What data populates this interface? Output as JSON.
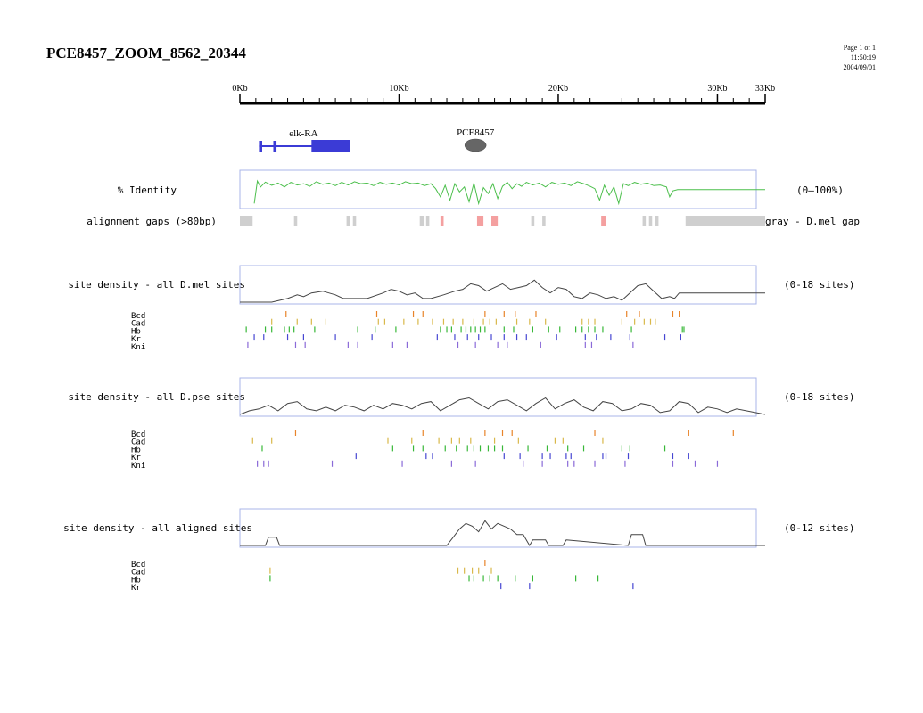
{
  "header": {
    "title": "PCE8457_ZOOM_8562_20344",
    "page": "Page 1 of 1",
    "time": "11:50:19",
    "date": "2004/09/01"
  },
  "chart_data": {
    "type": "genome-browser",
    "domain_kb": [
      0,
      33
    ],
    "ruler": {
      "labels": [
        "0Kb",
        "10Kb",
        "20Kb",
        "30Kb",
        "33Kb"
      ],
      "label_kb": [
        0,
        10,
        20,
        30,
        33
      ]
    },
    "features": [
      {
        "name": "elk-RA",
        "kind": "gene",
        "color": "#3b3bd6",
        "exons_kb": [
          [
            1.2,
            1.4
          ],
          [
            2.1,
            2.3
          ],
          [
            4.5,
            6.9
          ]
        ],
        "span_kb": [
          1.2,
          6.9
        ]
      },
      {
        "name": "PCE8457",
        "kind": "element",
        "color": "#666666",
        "center_kb": 14.8
      }
    ],
    "identity_track": {
      "label": "% Identity",
      "range_label": "(0–100%)",
      "color": "#4cbf4c",
      "ylim": [
        0,
        100
      ],
      "x_kb": [
        0.9,
        1.1,
        1.3,
        1.6,
        2.0,
        2.4,
        2.8,
        3.2,
        3.6,
        4.0,
        4.4,
        4.8,
        5.2,
        5.6,
        6.0,
        6.4,
        6.8,
        7.2,
        7.6,
        8.0,
        8.4,
        8.8,
        9.2,
        9.6,
        10.0,
        10.4,
        10.8,
        11.2,
        11.6,
        12.0,
        12.3,
        12.6,
        12.9,
        13.2,
        13.5,
        13.8,
        14.1,
        14.4,
        14.7,
        15.0,
        15.3,
        15.6,
        15.9,
        16.2,
        16.5,
        16.8,
        17.1,
        17.4,
        17.7,
        18.0,
        18.4,
        18.8,
        19.2,
        19.6,
        20.0,
        20.4,
        20.8,
        21.2,
        21.6,
        22.0,
        22.3,
        22.6,
        22.9,
        23.2,
        23.5,
        23.8,
        24.1,
        24.4,
        24.8,
        25.2,
        25.6,
        26.0,
        26.4,
        26.8,
        27.0,
        27.2,
        27.5,
        33.0
      ],
      "y": [
        10,
        78,
        60,
        75,
        65,
        72,
        60,
        74,
        66,
        70,
        62,
        76,
        68,
        72,
        64,
        74,
        66,
        76,
        70,
        72,
        64,
        74,
        68,
        72,
        66,
        76,
        70,
        72,
        64,
        70,
        55,
        30,
        65,
        20,
        70,
        45,
        60,
        15,
        72,
        10,
        58,
        40,
        70,
        25,
        62,
        74,
        55,
        70,
        62,
        74,
        66,
        72,
        60,
        74,
        68,
        72,
        64,
        76,
        70,
        62,
        55,
        20,
        65,
        35,
        60,
        10,
        70,
        64,
        74,
        68,
        72,
        64,
        66,
        60,
        30,
        48,
        52,
        52
      ]
    },
    "gap_track": {
      "label": "alignment gaps (>80bp)",
      "legend": "gray - D.mel gap",
      "segments_kb": [
        [
          0,
          0.8,
          "gray"
        ],
        [
          3.4,
          3.6,
          "gray"
        ],
        [
          6.7,
          6.9,
          "gray"
        ],
        [
          7.1,
          7.3,
          "gray"
        ],
        [
          11.3,
          11.6,
          "gray"
        ],
        [
          11.7,
          11.9,
          "gray"
        ],
        [
          12.6,
          12.8,
          "pink"
        ],
        [
          14.9,
          15.3,
          "pink"
        ],
        [
          15.8,
          16.2,
          "pink"
        ],
        [
          18.3,
          18.5,
          "gray"
        ],
        [
          19.0,
          19.2,
          "gray"
        ],
        [
          22.7,
          23.0,
          "pink"
        ],
        [
          25.3,
          25.5,
          "gray"
        ],
        [
          25.7,
          25.9,
          "gray"
        ],
        [
          26.1,
          26.3,
          "gray"
        ],
        [
          28.0,
          33.0,
          "gray"
        ]
      ]
    },
    "density_tracks": [
      {
        "label": "site density - all D.mel sites",
        "range_label": "(0-18 sites)",
        "ymax": 18,
        "x_kb": [
          0,
          2.0,
          3.0,
          3.6,
          4.0,
          4.5,
          5.2,
          6.0,
          6.5,
          7.0,
          8.0,
          9.0,
          9.5,
          10.0,
          10.5,
          11.0,
          11.5,
          12.0,
          12.8,
          13.5,
          14.0,
          14.5,
          15.0,
          15.5,
          16.0,
          16.5,
          17.0,
          17.5,
          18.0,
          18.5,
          19.0,
          19.5,
          20.0,
          20.5,
          21.0,
          21.5,
          22.0,
          22.5,
          23.0,
          23.5,
          24.0,
          24.5,
          25.0,
          25.5,
          26.0,
          26.5,
          27.0,
          27.3,
          27.6,
          33.0
        ],
        "y": [
          0,
          0,
          2,
          4,
          3,
          5,
          6,
          4,
          2,
          2,
          2,
          5,
          7,
          6,
          4,
          5,
          2,
          2,
          4,
          6,
          7,
          10,
          9,
          6,
          8,
          10,
          7,
          8,
          9,
          12,
          8,
          5,
          8,
          7,
          3,
          2,
          5,
          4,
          2,
          3,
          1,
          5,
          9,
          10,
          6,
          2,
          3,
          2,
          5,
          5
        ]
      },
      {
        "label": "site density - all D.pse sites",
        "range_label": "(0-18 sites)",
        "ymax": 18,
        "x_kb": [
          0,
          0.6,
          1.2,
          1.8,
          2.4,
          3.0,
          3.6,
          4.2,
          4.8,
          5.4,
          6.0,
          6.6,
          7.2,
          7.8,
          8.4,
          9.0,
          9.6,
          10.2,
          10.8,
          11.4,
          12.0,
          12.6,
          13.2,
          13.8,
          14.4,
          15.0,
          15.6,
          16.2,
          16.8,
          17.4,
          18.0,
          18.6,
          19.2,
          19.8,
          20.4,
          21.0,
          21.6,
          22.2,
          22.8,
          23.4,
          24.0,
          24.6,
          25.2,
          25.8,
          26.4,
          27.0,
          27.6,
          28.2,
          28.8,
          29.4,
          30.0,
          30.6,
          31.2,
          33.0
        ],
        "y": [
          0,
          2,
          3,
          5,
          2,
          6,
          7,
          3,
          2,
          4,
          2,
          5,
          4,
          2,
          5,
          3,
          6,
          5,
          3,
          6,
          7,
          2,
          5,
          8,
          9,
          6,
          3,
          7,
          8,
          5,
          2,
          6,
          9,
          3,
          6,
          8,
          4,
          2,
          7,
          6,
          2,
          3,
          6,
          5,
          1,
          2,
          7,
          6,
          1,
          4,
          3,
          1,
          3,
          0
        ]
      },
      {
        "label": "site density - all aligned sites",
        "range_label": "(0-12 sites)",
        "ymax": 12,
        "x_kb": [
          0,
          1.6,
          1.8,
          2.3,
          2.5,
          13.0,
          13.4,
          13.8,
          14.2,
          14.6,
          15.0,
          15.4,
          15.8,
          16.2,
          16.6,
          17.0,
          17.4,
          17.8,
          18.2,
          18.4,
          19.2,
          19.4,
          20.3,
          20.5,
          24.4,
          24.6,
          25.3,
          25.5,
          33.0
        ],
        "y": [
          0,
          0,
          3,
          3,
          0,
          0,
          3,
          6,
          8,
          7,
          5,
          9,
          6,
          8,
          7,
          6,
          4,
          4,
          0,
          2,
          2,
          0,
          0,
          2,
          0,
          4,
          4,
          0,
          0
        ]
      }
    ],
    "site_tracks": [
      {
        "rows": [
          {
            "name": "Bcd",
            "color": "#e8842a",
            "sites_kb": [
              2.9,
              8.6,
              10.9,
              11.5,
              15.4,
              16.6,
              17.3,
              18.6,
              24.3,
              25.1,
              27.2,
              27.6
            ]
          },
          {
            "name": "Cad",
            "color": "#d9b84a",
            "sites_kb": [
              2.0,
              3.6,
              4.5,
              5.4,
              8.7,
              9.1,
              10.3,
              11.2,
              12.1,
              12.8,
              13.4,
              14.0,
              14.7,
              15.3,
              15.7,
              16.1,
              17.4,
              18.2,
              19.2,
              21.5,
              21.9,
              22.3,
              24.0,
              24.8,
              25.4,
              25.8,
              26.1
            ]
          },
          {
            "name": "Hb",
            "color": "#38b838",
            "sites_kb": [
              0.4,
              1.6,
              2.0,
              2.8,
              3.1,
              3.4,
              4.7,
              7.4,
              8.5,
              9.8,
              12.6,
              13.0,
              13.3,
              13.9,
              14.2,
              14.5,
              14.8,
              15.1,
              15.4,
              16.6,
              17.2,
              18.4,
              19.4,
              20.1,
              21.1,
              21.5,
              21.9,
              22.3,
              22.8,
              24.6,
              27.8,
              27.9
            ]
          },
          {
            "name": "Kr",
            "color": "#4646d2",
            "sites_kb": [
              0.9,
              1.5,
              3.0,
              4.0,
              6.0,
              8.3,
              12.4,
              13.5,
              14.3,
              15.0,
              15.8,
              16.6,
              17.4,
              18.0,
              19.9,
              21.7,
              22.4,
              23.3,
              24.5,
              26.7,
              27.7
            ]
          },
          {
            "name": "Kni",
            "color": "#8a6ad8",
            "sites_kb": [
              0.5,
              3.5,
              4.1,
              6.8,
              7.4,
              9.6,
              10.5,
              13.7,
              14.8,
              16.2,
              16.8,
              18.9,
              21.7,
              22.1,
              24.7
            ]
          }
        ]
      },
      {
        "rows": [
          {
            "name": "Bcd",
            "color": "#e8842a",
            "sites_kb": [
              3.5,
              11.5,
              15.4,
              16.5,
              17.1,
              22.3,
              28.2,
              31.0
            ]
          },
          {
            "name": "Cad",
            "color": "#d9b84a",
            "sites_kb": [
              0.8,
              2.0,
              9.3,
              10.8,
              12.5,
              13.3,
              13.8,
              14.5,
              16.0,
              17.5,
              19.8,
              20.3,
              22.8
            ]
          },
          {
            "name": "Hb",
            "color": "#38b838",
            "sites_kb": [
              1.4,
              9.6,
              10.9,
              11.5,
              12.9,
              13.6,
              14.3,
              14.7,
              15.1,
              15.6,
              16.0,
              16.5,
              18.1,
              19.3,
              20.6,
              21.6,
              24.0,
              24.5,
              26.7
            ]
          },
          {
            "name": "Kr",
            "color": "#4646d2",
            "sites_kb": [
              7.3,
              11.7,
              12.1,
              16.6,
              17.6,
              19.0,
              19.5,
              20.5,
              20.8,
              22.8,
              23.0,
              24.4,
              27.2,
              28.2
            ]
          },
          {
            "name": "Kni",
            "color": "#8a6ad8",
            "sites_kb": [
              1.1,
              1.5,
              1.8,
              5.8,
              10.2,
              13.3,
              14.8,
              17.8,
              19.0,
              20.6,
              21.0,
              22.3,
              24.2,
              27.2,
              28.6,
              30.0
            ]
          }
        ]
      },
      {
        "rows": [
          {
            "name": "Bcd",
            "color": "#e8842a",
            "sites_kb": [
              15.4
            ]
          },
          {
            "name": "Cad",
            "color": "#d9b84a",
            "sites_kb": [
              1.9,
              13.7,
              14.1,
              14.6,
              15.0,
              15.8
            ]
          },
          {
            "name": "Hb",
            "color": "#38b838",
            "sites_kb": [
              1.9,
              14.4,
              14.7,
              15.3,
              15.7,
              16.2,
              17.3,
              18.4,
              21.1,
              22.5
            ]
          },
          {
            "name": "Kr",
            "color": "#4646d2",
            "sites_kb": [
              16.4,
              18.2,
              24.7
            ]
          }
        ]
      }
    ]
  }
}
